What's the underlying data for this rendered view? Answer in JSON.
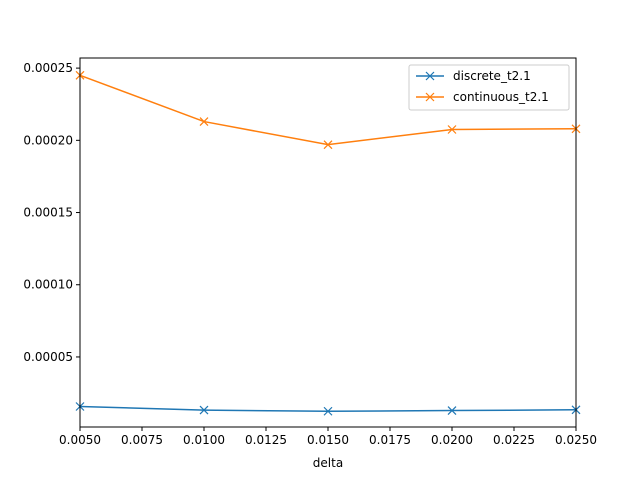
{
  "chart_data": {
    "type": "line",
    "title": "",
    "xlabel": "delta",
    "ylabel": "",
    "xlim": [
      0.005,
      0.025
    ],
    "ylim": [
      1.5e-06,
      0.000257
    ],
    "xticks": [
      0.005,
      0.0075,
      0.01,
      0.0125,
      0.015,
      0.0175,
      0.02,
      0.0225,
      0.025
    ],
    "xtick_labels": [
      "0.0050",
      "0.0075",
      "0.0100",
      "0.0125",
      "0.0150",
      "0.0175",
      "0.0200",
      "0.0225",
      "0.0250"
    ],
    "yticks": [
      5e-05,
      0.0001,
      0.00015,
      0.0002,
      0.00025
    ],
    "ytick_labels": [
      "0.00005",
      "0.00010",
      "0.00015",
      "0.00020",
      "0.00025"
    ],
    "grid": false,
    "legend_position": "top-right",
    "marker": "x",
    "x": [
      0.005,
      0.01,
      0.015,
      0.02,
      0.025
    ],
    "series": [
      {
        "name": "discrete_t2.1",
        "color": "#1f77b4",
        "values": [
          1.57e-05,
          1.32e-05,
          1.24e-05,
          1.29e-05,
          1.34e-05
        ]
      },
      {
        "name": "continuous_t2.1",
        "color": "#ff7f0e",
        "values": [
          0.000245,
          0.000213,
          0.000197,
          0.0002075,
          0.000208
        ]
      }
    ]
  }
}
